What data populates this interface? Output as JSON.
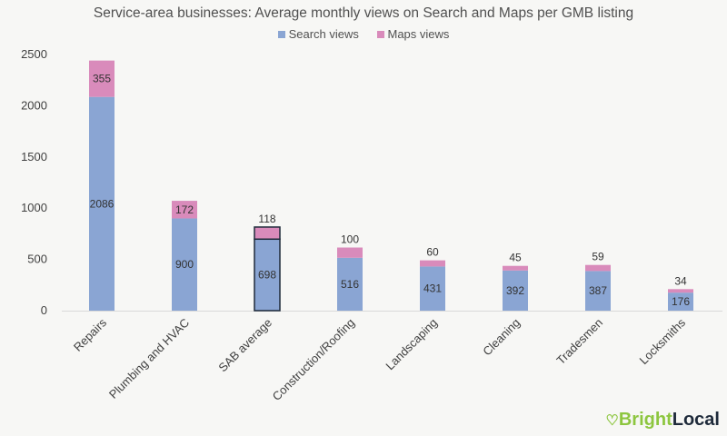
{
  "chart_data": {
    "type": "bar",
    "stacked": true,
    "title": "Service-area businesses: Average monthly views on Search and Maps per GMB listing",
    "categories": [
      "Repairs",
      "Plumbing and HVAC",
      "SAB average",
      "Construction/Roofing",
      "Landscaping",
      "Cleaning",
      "Tradesmen",
      "Locksmiths"
    ],
    "series": [
      {
        "name": "Search views",
        "color": "#8aa5d3",
        "values": [
          2086,
          900,
          698,
          516,
          431,
          392,
          387,
          176
        ]
      },
      {
        "name": "Maps views",
        "color": "#d98bbb",
        "values": [
          355,
          172,
          118,
          100,
          60,
          45,
          59,
          34
        ]
      }
    ],
    "highlight_category": "SAB average",
    "ylim": [
      0,
      2500
    ],
    "yticks": [
      0,
      500,
      1000,
      1500,
      2000,
      2500
    ],
    "xlabel": "",
    "ylabel": "",
    "grid": false,
    "legend": "top-center"
  },
  "brand": {
    "part1": "Bright",
    "part2": "Local"
  }
}
